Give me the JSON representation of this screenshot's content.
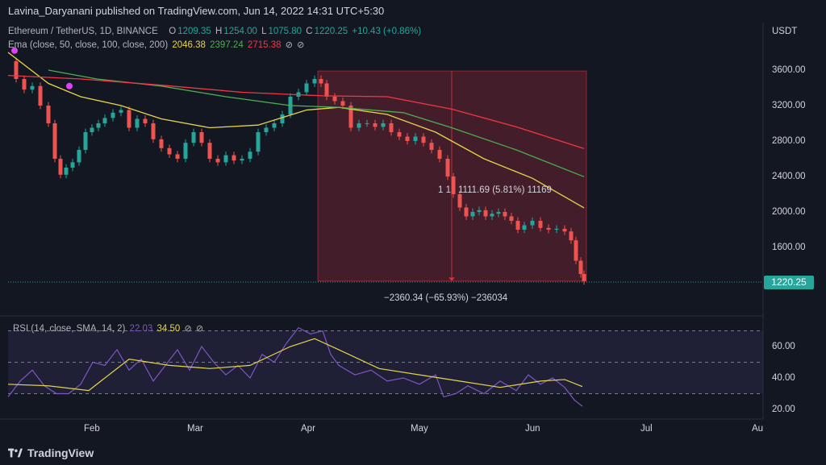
{
  "publisher_line": "Lavina_Daryanani published on TradingView.com, Jun 14, 2022 14:31 UTC+5:30",
  "symbol": {
    "name": "Ethereum / TetherUS, 1D, BINANCE",
    "o_label": "O",
    "o_value": "1209.35",
    "h_label": "H",
    "h_value": "1254.00",
    "l_label": "L",
    "l_value": "1075.80",
    "c_label": "C",
    "c_value": "1220.25",
    "change": "+10.43 (+0.86%)"
  },
  "ema": {
    "label": "Ema (close, 50, close, 100, close, 200)",
    "v50": "2046.38",
    "v100": "2397.24",
    "v200": "2715.38"
  },
  "rsi": {
    "label": "RSI (14, close, SMA, 14, 2)",
    "v1": "22.03",
    "v2": "34.50"
  },
  "currency": "USDT",
  "price_axis": [
    "3600.00",
    "3200.00",
    "2800.00",
    "2400.00",
    "2000.00",
    "1600.00"
  ],
  "rsi_axis": [
    "60.00",
    "40.00",
    "20.00"
  ],
  "last_price": "1220.25",
  "time_axis": [
    "Feb",
    "Mar",
    "Apr",
    "May",
    "Jun",
    "Jul",
    "Au"
  ],
  "measure_bottom": "−2360.34 (−65.93%) −236034",
  "measure_mid_a": "1 1",
  "measure_mid_b": "1111.69 (5.81%) 11169",
  "brand": "TradingView",
  "colors": {
    "background": "#131722",
    "up": "#26a69a",
    "down": "#ef5350",
    "ema50": "#e6d54b",
    "ema100": "#4caf50",
    "ema200": "#f23645",
    "rsi": "#7e57c2",
    "rsi_sma": "#e6d54b"
  },
  "chart_data": {
    "type": "candlestick",
    "series": [
      {
        "name": "Ema (close, 50, close, 100, close, 200)",
        "values": []
      }
    ],
    "price_range": [
      1000,
      3800
    ],
    "rsi_range": [
      15,
      75
    ],
    "rsi_levels": [
      70,
      50,
      30
    ]
  }
}
